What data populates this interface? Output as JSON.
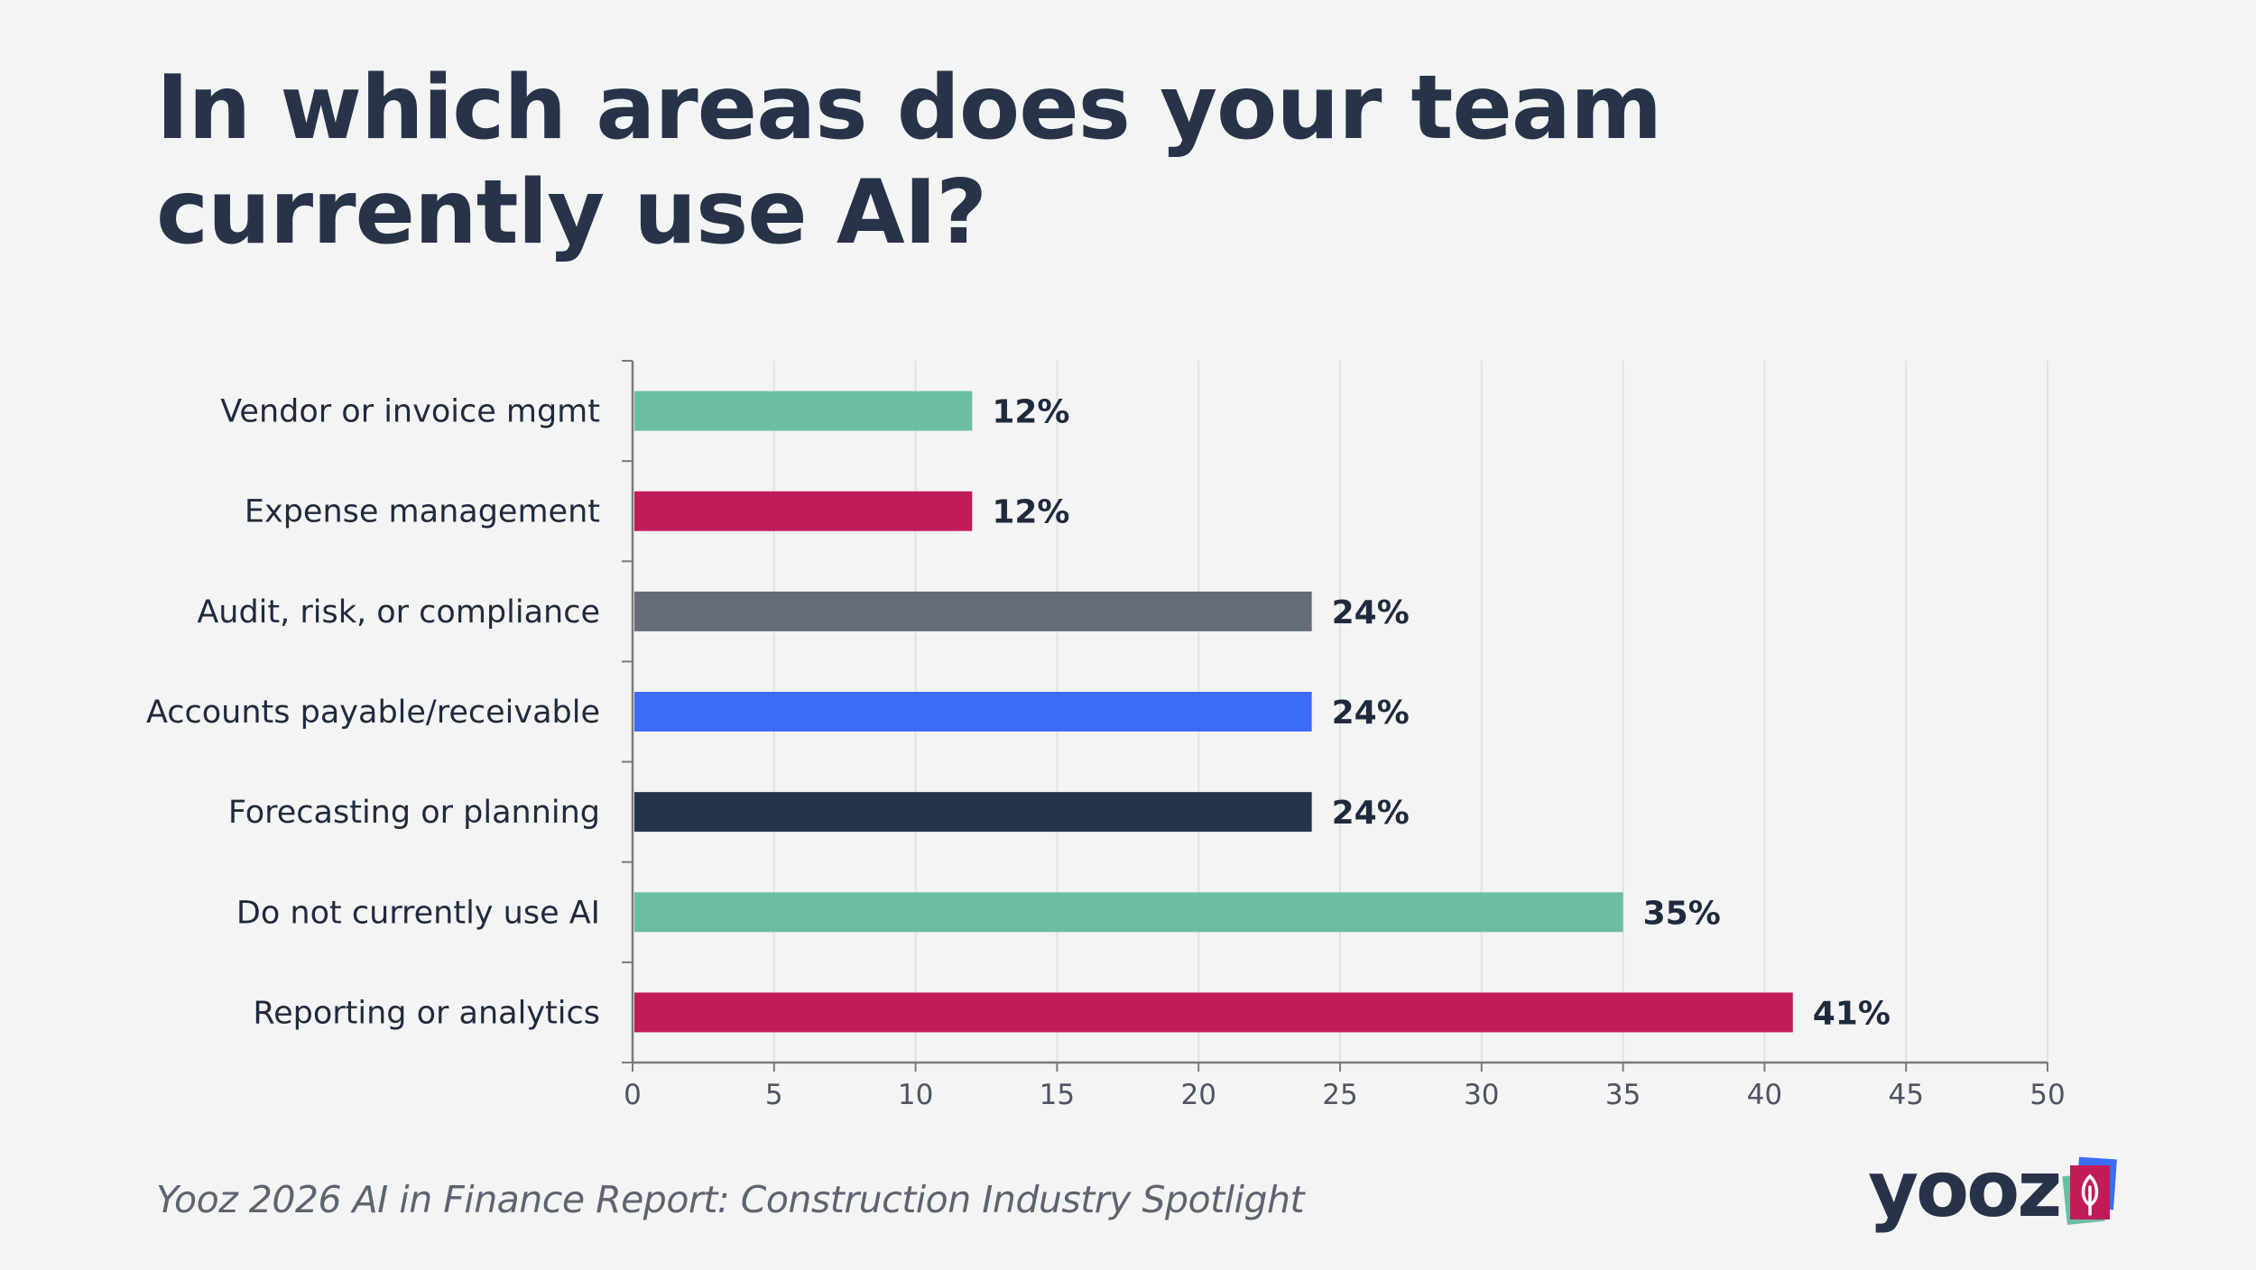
{
  "title": "In which areas does your team currently use AI?",
  "footer": "Yooz 2026 AI in Finance Report: Construction Industry Spotlight",
  "logo": {
    "text": "yooz",
    "icon": "leaf-icon"
  },
  "colors": {
    "text": "#263349",
    "axis": "#7a7a7a",
    "grid": "#e2e2e2"
  },
  "chart_data": {
    "type": "bar",
    "orientation": "horizontal",
    "categories": [
      "Vendor or invoice mgmt",
      "Expense management",
      "Audit, risk, or compliance",
      "Accounts payable/receivable",
      "Forecasting or planning",
      "Do not currently use AI",
      "Reporting or analytics"
    ],
    "values": [
      12,
      12,
      24,
      24,
      24,
      35,
      41
    ],
    "value_labels": [
      "12%",
      "12%",
      "24%",
      "24%",
      "24%",
      "35%",
      "41%"
    ],
    "bar_colors": [
      "#6cbea3",
      "#c11b5a",
      "#656b78",
      "#3c6bf8",
      "#24344b",
      "#6cbea3",
      "#c11b5a"
    ],
    "xlim": [
      0,
      50
    ],
    "xticks": [
      0,
      5,
      10,
      15,
      20,
      25,
      30,
      35,
      40,
      45,
      50
    ],
    "grid": true,
    "xlabel": "",
    "ylabel": ""
  }
}
